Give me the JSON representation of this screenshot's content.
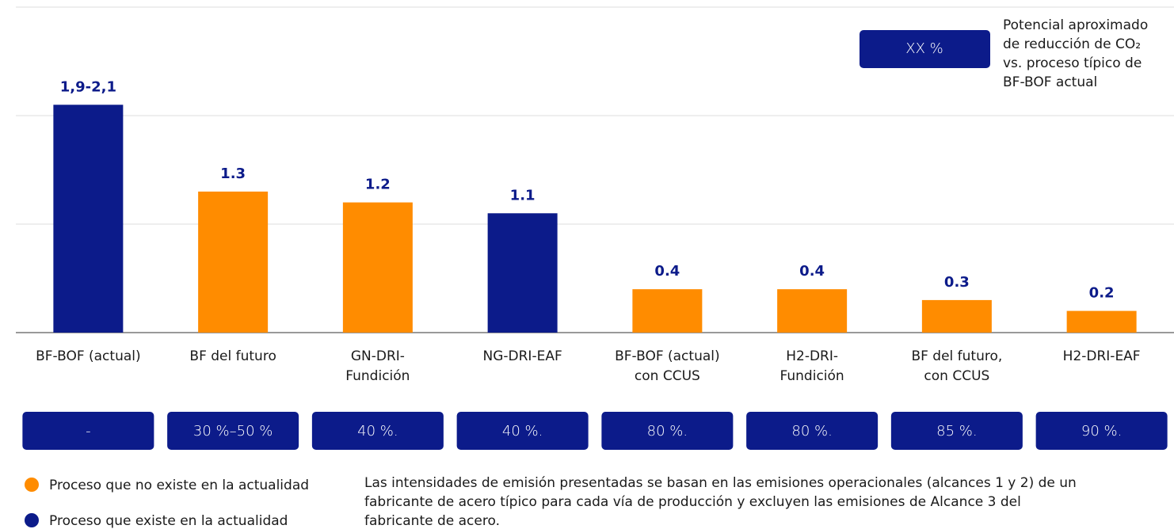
{
  "chart_data": {
    "type": "bar",
    "categories": [
      [
        "BF-BOF (actual)"
      ],
      [
        "BF del futuro"
      ],
      [
        "GN-DRI-",
        "Fundición"
      ],
      [
        "NG-DRI-EAF"
      ],
      [
        "BF-BOF (actual)",
        "con CCUS"
      ],
      [
        "H2-DRI-",
        "Fundición"
      ],
      [
        "BF del futuro,",
        "con CCUS"
      ],
      [
        "H2-DRI-EAF"
      ]
    ],
    "values": [
      2.1,
      1.3,
      1.2,
      1.1,
      0.4,
      0.4,
      0.3,
      0.2
    ],
    "value_labels": [
      "1,9-2,1",
      "1.3",
      "1.2",
      "1.1",
      "0.4",
      "0.4",
      "0.3",
      "0.2"
    ],
    "colors": [
      "#0c1b8a",
      "#ff8c00",
      "#ff8c00",
      "#0c1b8a",
      "#ff8c00",
      "#ff8c00",
      "#ff8c00",
      "#ff8c00"
    ],
    "reductions": [
      "-",
      "30 %–50 %",
      "40 %.",
      "40 %.",
      "80 %.",
      "80 %.",
      "85 %.",
      "90 %."
    ],
    "reduction_key": {
      "box": "XX %",
      "lines": [
        "Potencial aproximado",
        "de reducción de CO₂",
        "vs. proceso típico de",
        "BF-BOF actual"
      ]
    },
    "legend": [
      {
        "name": "Proceso que no existe en la actualidad",
        "color": "#ff8c00"
      },
      {
        "name": "Proceso que existe en la actualidad",
        "color": "#0c1b8a"
      }
    ],
    "note": [
      "Las intensidades de emisión presentadas se basan en las emisiones operacionales (alcances 1 y 2) de un",
      "fabricante de acero típico para cada vía de producción y excluyen las emisiones de Alcance 3 del",
      "fabricante de acero."
    ],
    "ylim": [
      0,
      3
    ],
    "yticks": [
      0,
      1,
      2,
      3
    ],
    "grid": true
  }
}
